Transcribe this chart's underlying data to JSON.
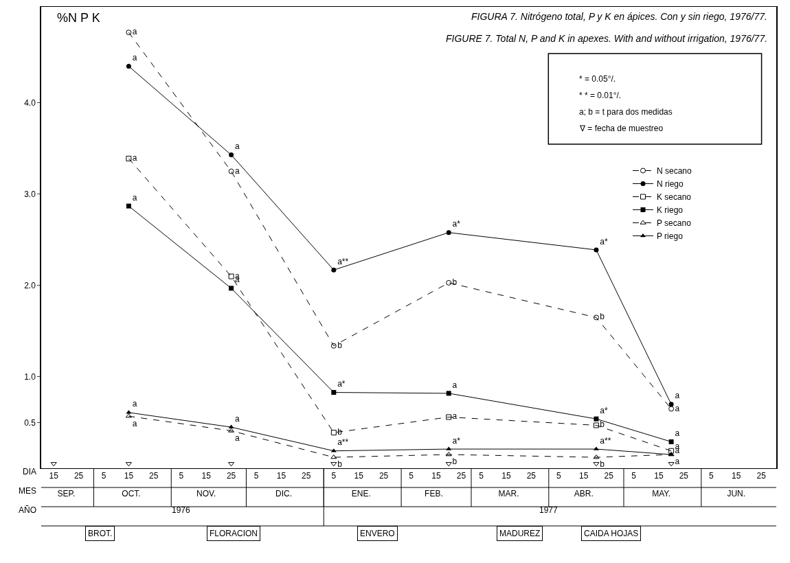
{
  "chart_data": {
    "type": "line",
    "title": "FIGURA 7. Nitrógeno total, P y K en ápices. Con y sin riego, 1976/77.",
    "subtitle": "FIGURE 7. Total N, P and K in apexes. With and without irrigation, 1976/77.",
    "ylabel": "%N P K",
    "xlim": [
      "1976-09-10",
      "1977-07-01"
    ],
    "ylim": [
      0,
      5.05
    ],
    "yticks": [
      {
        "value": 0.5,
        "label": "0.5"
      },
      {
        "value": 1,
        "label": "1.0"
      },
      {
        "value": 2,
        "label": "2.0"
      },
      {
        "value": 3,
        "label": "3.0"
      },
      {
        "value": 4,
        "label": "4.0"
      }
    ],
    "xticks": [
      {
        "value": "1976-09-15",
        "label": "15"
      },
      {
        "value": "1976-09-25",
        "label": "25"
      },
      {
        "value": "1976-10-05",
        "label": "5"
      },
      {
        "value": "1976-10-15",
        "label": "15"
      },
      {
        "value": "1976-10-25",
        "label": "25"
      },
      {
        "value": "1976-11-05",
        "label": "5"
      },
      {
        "value": "1976-11-15",
        "label": "15"
      },
      {
        "value": "1976-11-25",
        "label": "25"
      },
      {
        "value": "1976-12-05",
        "label": "5"
      },
      {
        "value": "1976-12-15",
        "label": "15"
      },
      {
        "value": "1976-12-25",
        "label": "25"
      },
      {
        "value": "1977-01-05",
        "label": "5"
      },
      {
        "value": "1977-01-15",
        "label": "15"
      },
      {
        "value": "1977-01-25",
        "label": "25"
      },
      {
        "value": "1977-02-05",
        "label": "5"
      },
      {
        "value": "1977-02-15",
        "label": "15"
      },
      {
        "value": "1977-02-25",
        "label": "25"
      },
      {
        "value": "1977-03-05",
        "label": "5"
      },
      {
        "value": "1977-03-15",
        "label": "15"
      },
      {
        "value": "1977-03-25",
        "label": "25"
      },
      {
        "value": "1977-04-05",
        "label": "5"
      },
      {
        "value": "1977-04-15",
        "label": "15"
      },
      {
        "value": "1977-04-25",
        "label": "25"
      },
      {
        "value": "1977-05-05",
        "label": "5"
      },
      {
        "value": "1977-05-15",
        "label": "15"
      },
      {
        "value": "1977-05-25",
        "label": "25"
      },
      {
        "value": "1977-06-05",
        "label": "5"
      },
      {
        "value": "1977-06-15",
        "label": "15"
      },
      {
        "value": "1977-06-25",
        "label": "25"
      }
    ],
    "x2lim": [
      "1976-09-10",
      "1977-07-01"
    ],
    "x2ticks": [
      {
        "value": "1976-09-20",
        "label": "SEP."
      },
      {
        "value": "1976-10-16",
        "label": "OCT."
      },
      {
        "value": "1976-11-15",
        "label": "NOV."
      },
      {
        "value": "1976-12-16",
        "label": "DIC."
      },
      {
        "value": "1977-01-16",
        "label": "ENE."
      },
      {
        "value": "1977-02-14",
        "label": "FEB."
      },
      {
        "value": "1977-03-16",
        "label": "MAR."
      },
      {
        "value": "1977-04-15",
        "label": "ABR."
      },
      {
        "value": "1977-05-16",
        "label": "MAY."
      },
      {
        "value": "1977-06-15",
        "label": "JUN."
      }
    ],
    "x": [
      "1976-10-15",
      "1976-11-25",
      "1977-01-05",
      "1977-02-20",
      "1977-04-20",
      "1977-05-20"
    ],
    "series": [
      {
        "name": "N secano",
        "color": "#000000",
        "marker": "circle-open",
        "line_style": "dashed",
        "values": [
          4.77,
          3.25,
          1.34,
          2.03,
          1.65,
          0.65
        ],
        "value_labels": [
          "a",
          "a",
          "b",
          "b",
          "b",
          "a"
        ]
      },
      {
        "name": "N riego",
        "color": "#000000",
        "marker": "circle",
        "line_style": "solid",
        "values": [
          4.4,
          3.43,
          2.17,
          2.58,
          2.39,
          0.7
        ],
        "value_labels": [
          "a",
          "a",
          "a**",
          "a*",
          "a*",
          "a"
        ]
      },
      {
        "name": "K secano",
        "color": "#000000",
        "marker": "square-open",
        "line_style": "dashed",
        "values": [
          3.39,
          2.1,
          0.39,
          0.56,
          0.47,
          0.19
        ],
        "value_labels": [
          "a",
          "a",
          "b",
          "a",
          "b",
          "a"
        ]
      },
      {
        "name": "K riego",
        "color": "#000000",
        "marker": "square",
        "line_style": "solid",
        "values": [
          2.87,
          1.97,
          0.83,
          0.82,
          0.54,
          0.29
        ],
        "value_labels": [
          "a",
          "a",
          "a*",
          "a",
          "a*",
          "a"
        ]
      },
      {
        "name": "P secano",
        "color": "#000000",
        "marker": "triangle-up-open",
        "line_style": "dashed",
        "values": [
          0.57,
          0.41,
          0.12,
          0.15,
          0.12,
          0.15
        ],
        "value_labels": [
          "a",
          "a",
          "b",
          "b",
          "b",
          "a"
        ]
      },
      {
        "name": "P riego",
        "color": "#000000",
        "marker": "triangle-up",
        "line_style": "solid",
        "values": [
          0.61,
          0.45,
          0.19,
          0.21,
          0.21,
          0.15
        ],
        "value_labels": [
          "a",
          "a",
          "a**",
          "a*",
          "a**",
          "a"
        ]
      },
      {
        "type": "scatter",
        "color": "#000000",
        "marker": "triangle-down-open",
        "x": [
          "1976-09-15",
          "1976-10-15",
          "1976-11-25",
          "1977-01-05",
          "1977-02-20",
          "1977-04-20",
          "1977-05-20"
        ],
        "values": [
          0.05,
          0.05,
          0.05,
          0.05,
          0.05,
          0.05,
          0.05
        ]
      }
    ],
    "annotations": [
      "* = 0.05°/.",
      "* * = 0.01°/.",
      "a; b = t para dos medidas",
      "∇ = fecha de muestreo",
      "DIA",
      "MES",
      "AÑO",
      "1976",
      "1977",
      "BROT.",
      "FLORACION",
      "ENVERO",
      "MADUREZ",
      "CAIDA HOJAS"
    ],
    "legend": "right"
  }
}
